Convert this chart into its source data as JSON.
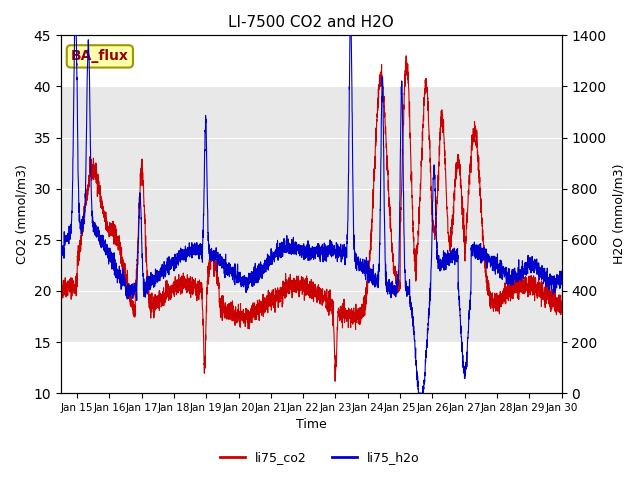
{
  "title": "LI-7500 CO2 and H2O",
  "xlabel": "Time",
  "ylabel_left": "CO2 (mmol/m3)",
  "ylabel_right": "H2O (mmol/m3)",
  "ylim_left": [
    10,
    45
  ],
  "ylim_right": [
    0,
    1400
  ],
  "yticks_left": [
    10,
    15,
    20,
    25,
    30,
    35,
    40,
    45
  ],
  "yticks_right": [
    0,
    200,
    400,
    600,
    800,
    1000,
    1200,
    1400
  ],
  "xtick_positions": [
    15,
    16,
    17,
    18,
    19,
    20,
    21,
    22,
    23,
    24,
    25,
    26,
    27,
    28,
    29,
    30
  ],
  "xtick_labels": [
    "Jan 15",
    "Jan 16",
    "Jan 17",
    "Jan 18",
    "Jan 19",
    "Jan 20",
    "Jan 21",
    "Jan 22",
    "Jan 23",
    "Jan 24",
    "Jan 25",
    "Jan 26",
    "Jan 27",
    "Jan 28",
    "Jan 29",
    "Jan 30"
  ],
  "legend_labels": [
    "li75_co2",
    "li75_h2o"
  ],
  "legend_colors": [
    "#cc0000",
    "#0000cc"
  ],
  "co2_color": "#cc0000",
  "h2o_color": "#0000cc",
  "bg_band_ymin": 15,
  "bg_band_ymax": 40,
  "bg_band_color": "#e8e8e8",
  "label_text": "BA_flux",
  "label_facecolor": "#ffffaa",
  "label_edgecolor": "#999900",
  "label_textcolor": "#990000",
  "n_points": 3600,
  "days_start": 14.5,
  "days_end": 30.0,
  "xlim": [
    14.5,
    30.0
  ]
}
